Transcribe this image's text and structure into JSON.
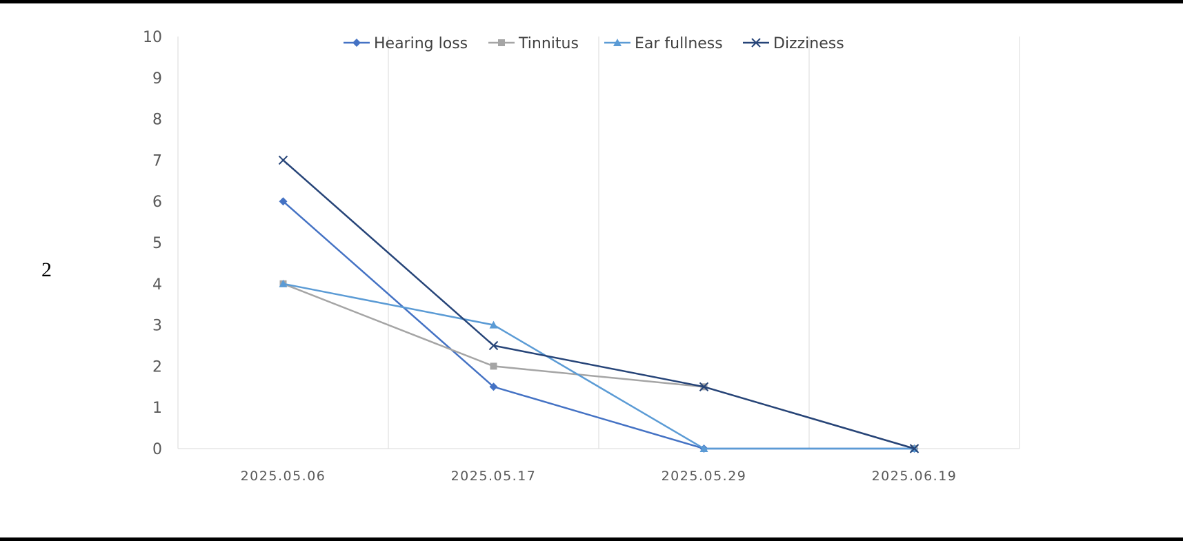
{
  "figure_label": "2",
  "chart_data": {
    "type": "line",
    "categories": [
      "2025.05.06",
      "2025.05.17",
      "2025.05.29",
      "2025.06.19"
    ],
    "ylim": [
      0,
      10
    ],
    "yticks": [
      0,
      1,
      2,
      3,
      4,
      5,
      6,
      7,
      8,
      9,
      10
    ],
    "grid": "vertical",
    "legend_position": "top",
    "series": [
      {
        "name": "Hearing loss",
        "values": [
          6,
          1.5,
          0,
          0
        ],
        "color": "#4472C4",
        "marker": "diamond"
      },
      {
        "name": "Tinnitus",
        "values": [
          4,
          2,
          1.5,
          0
        ],
        "color": "#A5A5A5",
        "marker": "square"
      },
      {
        "name": "Ear fullness",
        "values": [
          4,
          3,
          0,
          0
        ],
        "color": "#5B9BD5",
        "marker": "triangle"
      },
      {
        "name": "Dizziness",
        "values": [
          7,
          2.5,
          1.5,
          0
        ],
        "color": "#264478",
        "marker": "x"
      }
    ]
  }
}
